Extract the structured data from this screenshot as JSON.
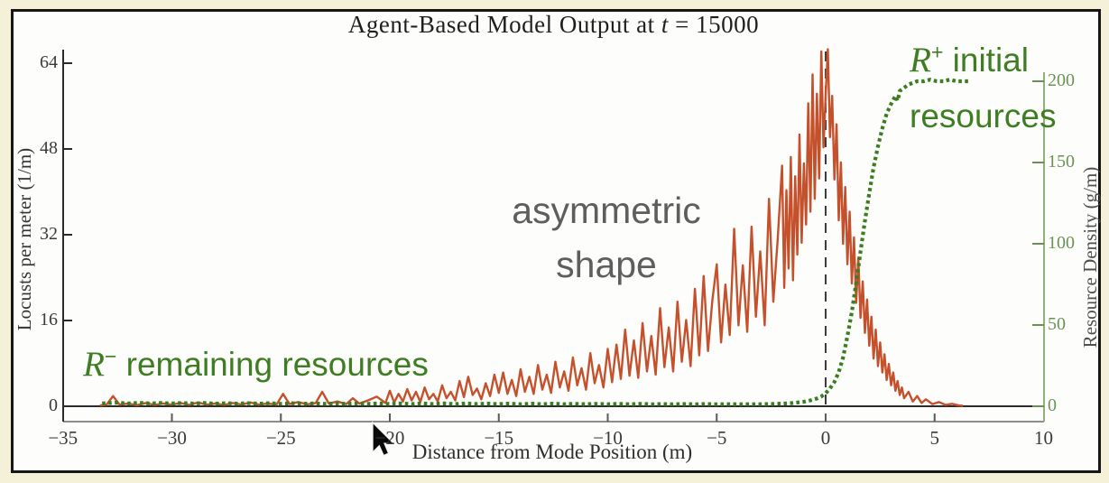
{
  "slide": {
    "background_color": "#f5f0d8",
    "panel_border_color": "#161616",
    "panel_background": "#fdfdfc"
  },
  "chart_data": {
    "type": "line",
    "title": {
      "prefix": "Agent-Based Model Output at ",
      "variable": "t",
      "suffix": " = 15000"
    },
    "xlabel": "Distance from Mode Position (m)",
    "ylabel_left": "Locusts per meter (1/m)",
    "ylabel_right": "Resource Density (g/m)",
    "xlim": [
      -35,
      10
    ],
    "ylim_left": [
      0,
      64
    ],
    "ylim_right": [
      0,
      200
    ],
    "x_ticks": [
      -35,
      -30,
      -25,
      -20,
      -15,
      -10,
      -5,
      0,
      5,
      10
    ],
    "y_ticks_left": [
      0,
      16,
      32,
      48,
      64
    ],
    "y_ticks_right": [
      0,
      50,
      100,
      150,
      200
    ],
    "grid": false,
    "legend": "none",
    "vline": {
      "x": 0,
      "style": "dashed",
      "color": "#3c3c3c"
    },
    "axis_colors": {
      "left": "#2b2b2b",
      "right_line": "#8fb07c",
      "right_labels": "#6b9254",
      "frame": "#8d8d8d",
      "zero_line": "#2b2b2b"
    },
    "series": [
      {
        "name": "locust-density",
        "axis": "left",
        "style": "solid",
        "color": "#c5512c",
        "points": [
          [
            -33.3,
            0.15
          ],
          [
            -33,
            0.3
          ],
          [
            -32.7,
            1.9
          ],
          [
            -32.4,
            0.3
          ],
          [
            -32,
            0.5
          ],
          [
            -31.6,
            0.2
          ],
          [
            -31.2,
            0.6
          ],
          [
            -30.8,
            0.25
          ],
          [
            -30.4,
            0.5
          ],
          [
            -30,
            0.3
          ],
          [
            -29.6,
            0.6
          ],
          [
            -29.2,
            0.25
          ],
          [
            -28.8,
            0.7
          ],
          [
            -28.4,
            0.3
          ],
          [
            -28,
            0.5
          ],
          [
            -27.6,
            0.25
          ],
          [
            -27.2,
            0.6
          ],
          [
            -26.8,
            0.3
          ],
          [
            -26.4,
            0.7
          ],
          [
            -26,
            0.3
          ],
          [
            -25.6,
            0.5
          ],
          [
            -25.2,
            0.3
          ],
          [
            -24.9,
            2.3
          ],
          [
            -24.6,
            0.4
          ],
          [
            -24.2,
            0.8
          ],
          [
            -23.8,
            0.35
          ],
          [
            -23.4,
            0.6
          ],
          [
            -23.1,
            2.7
          ],
          [
            -22.8,
            0.5
          ],
          [
            -22.4,
            0.9
          ],
          [
            -22,
            0.4
          ],
          [
            -21.7,
            1.5
          ],
          [
            -21.4,
            0.5
          ],
          [
            -21,
            1.1
          ],
          [
            -20.6,
            1.8
          ],
          [
            -20.2,
            0.6
          ],
          [
            -20,
            2.9
          ],
          [
            -19.8,
            0.7
          ],
          [
            -19.6,
            2.3
          ],
          [
            -19.4,
            0.9
          ],
          [
            -19.2,
            3.2
          ],
          [
            -19,
            1.1
          ],
          [
            -18.8,
            2.7
          ],
          [
            -18.6,
            0.8
          ],
          [
            -18.4,
            3.5
          ],
          [
            -18.2,
            1.3
          ],
          [
            -18,
            2.3
          ],
          [
            -17.8,
            0.9
          ],
          [
            -17.6,
            3.9
          ],
          [
            -17.4,
            1.5
          ],
          [
            -17.2,
            2.7
          ],
          [
            -17,
            1.1
          ],
          [
            -16.8,
            4.7
          ],
          [
            -16.6,
            1.7
          ],
          [
            -16.4,
            5.5
          ],
          [
            -16.2,
            2.1
          ],
          [
            -16,
            3.3
          ],
          [
            -15.8,
            1.3
          ],
          [
            -15.6,
            4.3
          ],
          [
            -15.4,
            1.9
          ],
          [
            -15.2,
            5.9
          ],
          [
            -15,
            2.5
          ],
          [
            -14.8,
            6.3
          ],
          [
            -14.6,
            2.3
          ],
          [
            -14.4,
            4.9
          ],
          [
            -14.2,
            1.9
          ],
          [
            -14,
            6.9
          ],
          [
            -13.8,
            2.7
          ],
          [
            -13.6,
            5.5
          ],
          [
            -13.4,
            2.3
          ],
          [
            -13.2,
            7.7
          ],
          [
            -13,
            3.1
          ],
          [
            -12.8,
            5.9
          ],
          [
            -12.6,
            2.5
          ],
          [
            -12.4,
            8.3
          ],
          [
            -12.2,
            3.5
          ],
          [
            -12,
            6.5
          ],
          [
            -11.8,
            2.9
          ],
          [
            -11.6,
            9.1
          ],
          [
            -11.4,
            3.9
          ],
          [
            -11.2,
            7.1
          ],
          [
            -11,
            3.1
          ],
          [
            -10.8,
            9.9
          ],
          [
            -10.6,
            4.3
          ],
          [
            -10.4,
            7.7
          ],
          [
            -10.2,
            3.5
          ],
          [
            -10,
            10.7
          ],
          [
            -9.8,
            4.5
          ],
          [
            -9.6,
            11.5
          ],
          [
            -9.4,
            5.1
          ],
          [
            -9.2,
            14.3
          ],
          [
            -9,
            5.7
          ],
          [
            -8.8,
            12.3
          ],
          [
            -8.6,
            5.3
          ],
          [
            -8.4,
            15.5
          ],
          [
            -8.2,
            6.5
          ],
          [
            -8,
            13.1
          ],
          [
            -7.8,
            5.9
          ],
          [
            -7.6,
            18.3
          ],
          [
            -7.4,
            7.3
          ],
          [
            -7.2,
            14.7
          ],
          [
            -7,
            6.5
          ],
          [
            -6.8,
            19.5
          ],
          [
            -6.6,
            8.3
          ],
          [
            -6.4,
            16.1
          ],
          [
            -6.2,
            7.5
          ],
          [
            -6,
            21.9
          ],
          [
            -5.8,
            9.5
          ],
          [
            -5.6,
            24.3
          ],
          [
            -5.4,
            10.3
          ],
          [
            -5.2,
            19.7
          ],
          [
            -5,
            26.5
          ],
          [
            -4.8,
            11.9
          ],
          [
            -4.6,
            22.7
          ],
          [
            -4.4,
            13.3
          ],
          [
            -4.2,
            33.1
          ],
          [
            -4,
            15.1
          ],
          [
            -3.8,
            26.3
          ],
          [
            -3.6,
            13.9
          ],
          [
            -3.4,
            33.5
          ],
          [
            -3.2,
            16.7
          ],
          [
            -3,
            28.9
          ],
          [
            -2.8,
            15.1
          ],
          [
            -2.6,
            38.7
          ],
          [
            -2.4,
            19.5
          ],
          [
            -2.2,
            31.3
          ],
          [
            -2,
            44.9
          ],
          [
            -1.9,
            22.1
          ],
          [
            -1.8,
            40.3
          ],
          [
            -1.7,
            25.7
          ],
          [
            -1.6,
            46.5
          ],
          [
            -1.5,
            23.5
          ],
          [
            -1.4,
            42.9
          ],
          [
            -1.3,
            28.3
          ],
          [
            -1.2,
            50.7
          ],
          [
            -1.1,
            30.5
          ],
          [
            -1,
            45.3
          ],
          [
            -0.9,
            33.9
          ],
          [
            -0.8,
            56.5
          ],
          [
            -0.7,
            36.3
          ],
          [
            -0.6,
            61.9
          ],
          [
            -0.5,
            38.7
          ],
          [
            -0.4,
            58.3
          ],
          [
            -0.3,
            42.5
          ],
          [
            -0.2,
            66.2
          ],
          [
            -0.1,
            48.3
          ],
          [
            0,
            58.1
          ],
          [
            0.1,
            66.6
          ],
          [
            0.2,
            50.2
          ],
          [
            0.3,
            57.9
          ],
          [
            0.4,
            42.3
          ],
          [
            0.5,
            52.6
          ],
          [
            0.6,
            34.7
          ],
          [
            0.7,
            45.5
          ],
          [
            0.8,
            30.3
          ],
          [
            0.9,
            40.9
          ],
          [
            1,
            26.5
          ],
          [
            1.1,
            36.3
          ],
          [
            1.2,
            22.9
          ],
          [
            1.3,
            31.5
          ],
          [
            1.4,
            19.3
          ],
          [
            1.5,
            27.7
          ],
          [
            1.6,
            16.5
          ],
          [
            1.7,
            23.3
          ],
          [
            1.8,
            13.7
          ],
          [
            1.9,
            19.9
          ],
          [
            2,
            11.3
          ],
          [
            2.1,
            16.7
          ],
          [
            2.2,
            8.9
          ],
          [
            2.3,
            14.3
          ],
          [
            2.4,
            7.5
          ],
          [
            2.5,
            11.9
          ],
          [
            2.6,
            6.3
          ],
          [
            2.7,
            9.7
          ],
          [
            2.8,
            4.9
          ],
          [
            2.9,
            7.9
          ],
          [
            3,
            3.9
          ],
          [
            3.1,
            6.3
          ],
          [
            3.2,
            2.9
          ],
          [
            3.3,
            4.7
          ],
          [
            3.4,
            2.1
          ],
          [
            3.5,
            3.5
          ],
          [
            3.6,
            1.5
          ],
          [
            3.8,
            2.7
          ],
          [
            4,
            0.9
          ],
          [
            4.2,
            1.9
          ],
          [
            4.4,
            0.6
          ],
          [
            4.6,
            1.3
          ],
          [
            4.9,
            0.4
          ],
          [
            5.2,
            0.8
          ],
          [
            5.5,
            0.25
          ],
          [
            5.8,
            0.45
          ],
          [
            6.1,
            0.15
          ],
          [
            6.3,
            0.1
          ]
        ]
      },
      {
        "name": "resource-density",
        "axis": "right",
        "style": "dotted",
        "color": "#3a7e21",
        "points": [
          [
            -33.2,
            1.8
          ],
          [
            -32.5,
            2.2
          ],
          [
            -32,
            1.7
          ],
          [
            -31.5,
            2.1
          ],
          [
            -31,
            1.7
          ],
          [
            -30.5,
            2
          ],
          [
            -30,
            1.7
          ],
          [
            -29.5,
            2
          ],
          [
            -29,
            1.6
          ],
          [
            -28.5,
            2
          ],
          [
            -28,
            1.6
          ],
          [
            -27.5,
            1.9
          ],
          [
            -27,
            1.6
          ],
          [
            -26.5,
            1.9
          ],
          [
            -26,
            1.6
          ],
          [
            -25.5,
            1.9
          ],
          [
            -25,
            1.5
          ],
          [
            -24.5,
            1.9
          ],
          [
            -24,
            1.5
          ],
          [
            -23.5,
            1.8
          ],
          [
            -23,
            1.5
          ],
          [
            -22.5,
            1.8
          ],
          [
            -22,
            1.5
          ],
          [
            -21.5,
            1.8
          ],
          [
            -21,
            1.5
          ],
          [
            -20.5,
            1.8
          ],
          [
            -20,
            1.4
          ],
          [
            -19.5,
            1.7
          ],
          [
            -19,
            1.4
          ],
          [
            -18.5,
            1.7
          ],
          [
            -18,
            1.4
          ],
          [
            -17.5,
            1.7
          ],
          [
            -17,
            1.4
          ],
          [
            -16.5,
            1.7
          ],
          [
            -16,
            1.4
          ],
          [
            -15.5,
            1.6
          ],
          [
            -15,
            1.4
          ],
          [
            -14.5,
            1.6
          ],
          [
            -14,
            1.3
          ],
          [
            -13.5,
            1.6
          ],
          [
            -13,
            1.3
          ],
          [
            -12.5,
            1.6
          ],
          [
            -12,
            1.3
          ],
          [
            -11.5,
            1.5
          ],
          [
            -11,
            1.3
          ],
          [
            -10.5,
            1.5
          ],
          [
            -10,
            1.3
          ],
          [
            -9.5,
            1.5
          ],
          [
            -9,
            1.2
          ],
          [
            -8.5,
            1.5
          ],
          [
            -8,
            1.2
          ],
          [
            -7.5,
            1.4
          ],
          [
            -7,
            1.2
          ],
          [
            -6.5,
            1.4
          ],
          [
            -6,
            1.2
          ],
          [
            -5.5,
            1.4
          ],
          [
            -5,
            1.2
          ],
          [
            -4.5,
            1.3
          ],
          [
            -4,
            1.2
          ],
          [
            -3.5,
            1.3
          ],
          [
            -3,
            1.3
          ],
          [
            -2.5,
            1.4
          ],
          [
            -2,
            1.6
          ],
          [
            -1.5,
            2
          ],
          [
            -1,
            2.8
          ],
          [
            -0.7,
            3.6
          ],
          [
            -0.4,
            4.8
          ],
          [
            -0.2,
            6
          ],
          [
            0,
            8
          ],
          [
            0.2,
            11
          ],
          [
            0.4,
            15
          ],
          [
            0.6,
            21
          ],
          [
            0.8,
            30
          ],
          [
            1,
            43
          ],
          [
            1.2,
            58
          ],
          [
            1.4,
            76
          ],
          [
            1.6,
            95
          ],
          [
            1.8,
            114
          ],
          [
            2,
            131
          ],
          [
            2.2,
            147
          ],
          [
            2.4,
            160
          ],
          [
            2.6,
            171
          ],
          [
            2.8,
            180
          ],
          [
            3,
            186
          ],
          [
            3.2,
            191
          ],
          [
            3.3,
            188
          ],
          [
            3.4,
            194
          ],
          [
            3.6,
            196
          ],
          [
            3.8,
            198
          ],
          [
            4,
            199
          ],
          [
            4.2,
            200
          ],
          [
            4.5,
            200
          ],
          [
            4.8,
            201
          ],
          [
            5.1,
            200
          ],
          [
            5.4,
            200
          ],
          [
            5.7,
            201
          ],
          [
            6,
            200
          ],
          [
            6.3,
            200
          ],
          [
            6.6,
            200
          ]
        ]
      }
    ]
  },
  "annotations": {
    "r_plus": {
      "variable": "R",
      "sup": "+",
      "line1": " initial",
      "line2": "resources",
      "color": "#3f7d23"
    },
    "r_minus": {
      "variable": "R",
      "sup": "−",
      "text": " remaining resources",
      "color": "#3f7d23"
    },
    "asymmetric": {
      "line1": "asymmetric",
      "line2": "shape",
      "color": "#5e5e5e"
    }
  },
  "cursor": {
    "visible": true,
    "tip_x": 413,
    "tip_y": 468
  }
}
